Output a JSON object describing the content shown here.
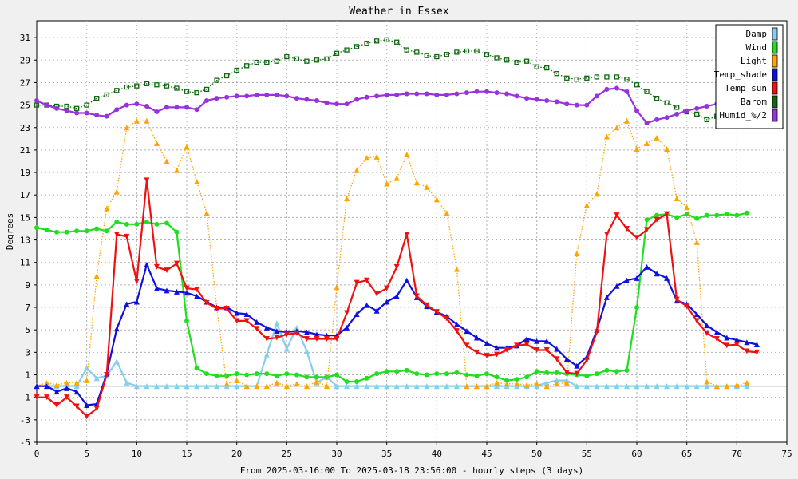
{
  "chart_data": {
    "type": "line",
    "title": "Weather in Essex",
    "xlabel": "From 2025-03-16:00 To 2025-03-18 23:56:00 - hourly steps (3 days)",
    "ylabel": "Degrees",
    "xlim": [
      0,
      75
    ],
    "ylim": [
      -5,
      32.5
    ],
    "xticks": [
      0,
      5,
      10,
      15,
      20,
      25,
      30,
      35,
      40,
      45,
      50,
      55,
      60,
      65,
      70,
      75
    ],
    "yticks": [
      -5,
      -3,
      -1,
      1,
      3,
      5,
      7,
      9,
      11,
      13,
      15,
      17,
      19,
      21,
      23,
      25,
      27,
      29,
      31
    ],
    "grid": true,
    "legend_position": "top-right",
    "series": [
      {
        "name": "Damp",
        "color": "#87ceeb",
        "style": "solid",
        "marker": "triangle-up",
        "values": [
          0,
          0,
          0,
          0,
          0,
          1.6,
          0.7,
          0.9,
          2.2,
          0.3,
          0,
          0,
          0,
          0,
          0,
          0,
          0,
          0,
          0,
          0,
          0,
          0,
          0,
          2.8,
          5.6,
          3.3,
          5.2,
          3.1,
          0.3,
          0.8,
          0,
          0,
          0,
          0,
          0,
          0,
          0,
          0,
          0,
          0,
          0,
          0,
          0,
          0,
          0,
          0,
          0,
          0,
          0,
          0,
          0,
          0.3,
          0.5,
          0.5,
          0,
          0,
          0,
          0,
          0,
          0,
          0,
          0,
          0,
          0,
          0,
          0,
          0,
          0,
          0,
          0,
          0,
          0
        ]
      },
      {
        "name": "Wind",
        "color": "#22dd22",
        "style": "solid",
        "marker": "circle",
        "values": [
          14.1,
          13.9,
          13.7,
          13.7,
          13.8,
          13.8,
          14.0,
          13.8,
          14.6,
          14.4,
          14.4,
          14.6,
          14.4,
          14.5,
          13.7,
          5.8,
          1.6,
          1.1,
          0.9,
          0.9,
          1.1,
          1.0,
          1.1,
          1.1,
          0.9,
          1.1,
          1.0,
          0.8,
          0.8,
          0.8,
          1.0,
          0.4,
          0.4,
          0.7,
          1.1,
          1.3,
          1.3,
          1.4,
          1.1,
          1.0,
          1.1,
          1.1,
          1.2,
          1.0,
          0.9,
          1.1,
          0.8,
          0.5,
          0.6,
          0.8,
          1.3,
          1.2,
          1.2,
          1.1,
          1.0,
          0.9,
          1.1,
          1.4,
          1.3,
          1.4,
          7.0,
          14.8,
          15.2,
          15.3,
          15.0,
          15.3,
          14.9,
          15.2,
          15.2,
          15.3,
          15.2,
          15.4
        ]
      },
      {
        "name": "Light",
        "color": "#ffa500",
        "style": "dotted",
        "marker": "triangle-up",
        "values": [
          0,
          0.3,
          0.1,
          0.3,
          0.3,
          0.5,
          9.8,
          15.8,
          17.3,
          23.0,
          23.6,
          23.6,
          21.6,
          20.0,
          19.2,
          21.3,
          18.2,
          15.4,
          7.0,
          0.2,
          0.5,
          0,
          0,
          0,
          0.3,
          0,
          0.2,
          0,
          0.4,
          0,
          8.8,
          16.7,
          19.2,
          20.3,
          20.4,
          18.0,
          18.5,
          20.6,
          18.1,
          17.7,
          16.6,
          15.4,
          10.4,
          0,
          0,
          0,
          0.3,
          0.2,
          0.2,
          0.1,
          0.2,
          0,
          0.2,
          0.3,
          11.8,
          16.1,
          17.1,
          22.2,
          23.0,
          23.6,
          21.1,
          21.6,
          22.1,
          21.1,
          16.7,
          15.9,
          12.8,
          0.4,
          0,
          0,
          0.1,
          0.3
        ]
      },
      {
        "name": "Temp_shade",
        "color": "#1010dd",
        "style": "solid",
        "marker": "triangle-up",
        "values": [
          0,
          0,
          -0.5,
          -0.2,
          -0.5,
          -1.7,
          -1.6,
          1.1,
          5.1,
          7.3,
          7.5,
          10.8,
          8.7,
          8.5,
          8.4,
          8.3,
          8.0,
          7.5,
          7.0,
          7.0,
          6.5,
          6.4,
          5.7,
          5.2,
          4.9,
          4.8,
          4.9,
          4.8,
          4.6,
          4.5,
          4.5,
          5.2,
          6.4,
          7.2,
          6.7,
          7.5,
          8.0,
          9.4,
          7.9,
          7.1,
          6.6,
          6.2,
          5.5,
          4.9,
          4.3,
          3.8,
          3.4,
          3.4,
          3.6,
          4.2,
          4.0,
          4.0,
          3.3,
          2.4,
          1.8,
          2.6,
          5.0,
          7.9,
          8.9,
          9.4,
          9.6,
          10.6,
          10.0,
          9.6,
          7.6,
          7.3,
          6.4,
          5.4,
          4.8,
          4.3,
          4.1,
          3.9,
          3.7
        ]
      },
      {
        "name": "Temp_sun",
        "color": "#ee1111",
        "style": "solid",
        "marker": "triangle-down",
        "values": [
          -1.0,
          -1.0,
          -1.7,
          -1.0,
          -1.8,
          -2.7,
          -2.0,
          1.0,
          13.5,
          13.3,
          9.3,
          18.3,
          10.6,
          10.3,
          10.9,
          8.7,
          8.6,
          7.4,
          6.9,
          6.9,
          5.8,
          5.8,
          5.1,
          4.2,
          4.3,
          4.6,
          4.7,
          4.2,
          4.2,
          4.2,
          4.2,
          6.5,
          9.2,
          9.4,
          8.2,
          8.7,
          10.6,
          13.5,
          8.0,
          7.2,
          6.6,
          6.0,
          4.9,
          3.6,
          3.0,
          2.7,
          2.8,
          3.2,
          3.6,
          3.7,
          3.2,
          3.2,
          2.4,
          1.2,
          1.1,
          2.3,
          4.8,
          13.5,
          15.2,
          14.0,
          13.2,
          13.9,
          14.8,
          15.3,
          7.7,
          7.1,
          5.8,
          4.7,
          4.2,
          3.6,
          3.7,
          3.1,
          3.0
        ]
      },
      {
        "name": "Barom",
        "color": "#116611",
        "style": "dotted",
        "marker": "square",
        "values": [
          25.0,
          25.0,
          24.9,
          24.9,
          24.7,
          25.0,
          25.6,
          25.9,
          26.3,
          26.6,
          26.7,
          26.9,
          26.8,
          26.7,
          26.5,
          26.2,
          26.1,
          26.4,
          27.2,
          27.6,
          28.1,
          28.5,
          28.8,
          28.8,
          28.9,
          29.3,
          29.1,
          28.9,
          29.0,
          29.1,
          29.6,
          29.9,
          30.2,
          30.5,
          30.7,
          30.8,
          30.6,
          29.9,
          29.7,
          29.4,
          29.3,
          29.5,
          29.7,
          29.8,
          29.8,
          29.5,
          29.2,
          29.0,
          28.8,
          28.9,
          28.4,
          28.3,
          27.8,
          27.4,
          27.3,
          27.4,
          27.5,
          27.5,
          27.5,
          27.3,
          26.8,
          26.2,
          25.6,
          25.2,
          24.8,
          24.4,
          24.2,
          23.7,
          24.0
        ]
      },
      {
        "name": "Humid_%/2",
        "color": "#9932dd",
        "style": "solid",
        "marker": "circle",
        "values": [
          25.4,
          25.0,
          24.7,
          24.5,
          24.3,
          24.3,
          24.1,
          24.0,
          24.6,
          25.0,
          25.1,
          24.9,
          24.4,
          24.8,
          24.8,
          24.8,
          24.6,
          25.4,
          25.6,
          25.7,
          25.8,
          25.8,
          25.9,
          25.9,
          25.9,
          25.8,
          25.6,
          25.5,
          25.4,
          25.2,
          25.1,
          25.1,
          25.5,
          25.7,
          25.8,
          25.9,
          25.9,
          26.0,
          26.0,
          26.0,
          25.9,
          25.9,
          26.0,
          26.1,
          26.2,
          26.2,
          26.1,
          26.0,
          25.8,
          25.6,
          25.5,
          25.4,
          25.3,
          25.1,
          25.0,
          25.0,
          25.8,
          26.4,
          26.5,
          26.2,
          24.5,
          23.4,
          23.7,
          23.9,
          24.2,
          24.5,
          24.7,
          24.9,
          25.1,
          25.3
        ]
      }
    ]
  }
}
